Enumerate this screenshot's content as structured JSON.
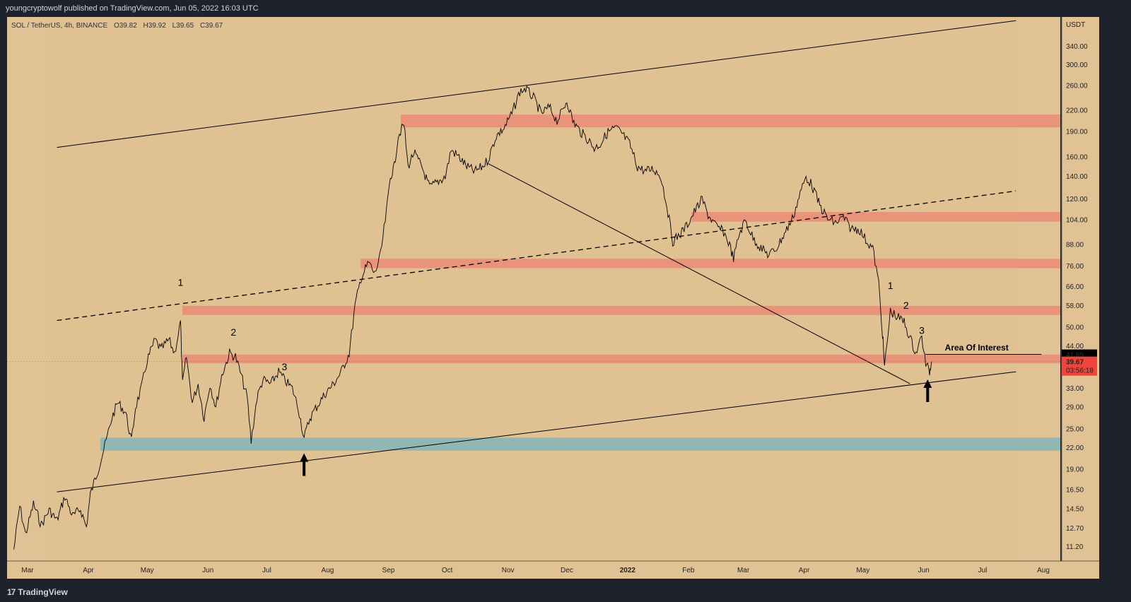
{
  "header": {
    "publisher_text": "youngcryptowolf published on TradingView.com, Jun 05, 2022 16:03 UTC"
  },
  "legend": {
    "symbol": "SOL / TetherUS, 4h, BINANCE",
    "open": "O39.82",
    "high": "H39.92",
    "low": "L39.65",
    "close": "C39.67"
  },
  "footer": {
    "brand": "TradingView",
    "logo_glyph": "17"
  },
  "colors": {
    "chart_bg": "#e0c294",
    "resistance_band": "#e8937a",
    "support_band": "#91b7b4",
    "price_line": "#000000",
    "last_price_bg": "#f0453c",
    "marker_bg": "#000000"
  },
  "chart_data": {
    "type": "line",
    "title": "",
    "xlabel": "",
    "ylabel": "USDT",
    "y_scale": "log",
    "ylim": [
      10.5,
      420
    ],
    "x_tick_labels": [
      "Mar",
      "Apr",
      "May",
      "Jun",
      "Jul",
      "Aug",
      "Sep",
      "Oct",
      "Nov",
      "Dec",
      "2022",
      "Feb",
      "Mar",
      "Apr",
      "May",
      "Jun",
      "Jul",
      "Aug"
    ],
    "x_tick_dates": [
      "2021-03-01",
      "2021-04-01",
      "2021-05-01",
      "2021-06-01",
      "2021-07-01",
      "2021-08-01",
      "2021-09-01",
      "2021-10-01",
      "2021-11-01",
      "2021-12-01",
      "2022-01-01",
      "2022-02-01",
      "2022-03-01",
      "2022-04-01",
      "2022-05-01",
      "2022-06-01",
      "2022-07-01",
      "2022-08-01"
    ],
    "y_ticks": [
      11.2,
      12.7,
      14.5,
      16.5,
      19.0,
      22.0,
      25.0,
      29.0,
      33.0,
      44.0,
      50.0,
      58.0,
      66.0,
      76.0,
      88.0,
      104.0,
      120.0,
      140.0,
      160.0,
      190.0,
      220.0,
      260.0,
      300.0,
      340.0
    ],
    "y_tick_labels": [
      "11.20",
      "12.70",
      "14.50",
      "16.50",
      "19.00",
      "22.00",
      "25.00",
      "29.00",
      "33.00",
      "44.00",
      "50.00",
      "58.00",
      "66.00",
      "76.00",
      "88.00",
      "104.00",
      "120.00",
      "140.00",
      "160.00",
      "190.00",
      "220.00",
      "260.00",
      "300.00",
      "340.00"
    ],
    "series": [
      {
        "points": [
          [
            "2021-02-22",
            11.0
          ],
          [
            "2021-02-25",
            14.8
          ],
          [
            "2021-02-28",
            12.2
          ],
          [
            "2021-03-04",
            15.0
          ],
          [
            "2021-03-08",
            13.0
          ],
          [
            "2021-03-12",
            14.4
          ],
          [
            "2021-03-16",
            13.4
          ],
          [
            "2021-03-20",
            15.8
          ],
          [
            "2021-03-24",
            13.8
          ],
          [
            "2021-03-28",
            14.5
          ],
          [
            "2021-03-31",
            12.8
          ],
          [
            "2021-04-02",
            16.0
          ],
          [
            "2021-04-06",
            19.0
          ],
          [
            "2021-04-10",
            23.0
          ],
          [
            "2021-04-13",
            27.0
          ],
          [
            "2021-04-16",
            30.0
          ],
          [
            "2021-04-20",
            28.0
          ],
          [
            "2021-04-23",
            23.0
          ],
          [
            "2021-04-25",
            29.0
          ],
          [
            "2021-04-28",
            33.0
          ],
          [
            "2021-05-01",
            40.0
          ],
          [
            "2021-05-05",
            46.0
          ],
          [
            "2021-05-08",
            43.0
          ],
          [
            "2021-05-12",
            46.0
          ],
          [
            "2021-05-15",
            42.0
          ],
          [
            "2021-05-18",
            52.0
          ],
          [
            "2021-05-19",
            34.0
          ],
          [
            "2021-05-21",
            41.0
          ],
          [
            "2021-05-24",
            30.0
          ],
          [
            "2021-05-27",
            34.0
          ],
          [
            "2021-05-30",
            27.0
          ],
          [
            "2021-06-02",
            34.0
          ],
          [
            "2021-06-05",
            29.0
          ],
          [
            "2021-06-08",
            36.0
          ],
          [
            "2021-06-12",
            42.0
          ],
          [
            "2021-06-15",
            41.0
          ],
          [
            "2021-06-18",
            36.0
          ],
          [
            "2021-06-21",
            31.0
          ],
          [
            "2021-06-23",
            23.0
          ],
          [
            "2021-06-26",
            31.0
          ],
          [
            "2021-06-29",
            35.0
          ],
          [
            "2021-07-03",
            34.0
          ],
          [
            "2021-07-07",
            37.0
          ],
          [
            "2021-07-10",
            35.0
          ],
          [
            "2021-07-14",
            33.0
          ],
          [
            "2021-07-17",
            29.0
          ],
          [
            "2021-07-20",
            23.5
          ],
          [
            "2021-07-23",
            27.0
          ],
          [
            "2021-07-27",
            29.5
          ],
          [
            "2021-07-31",
            32.0
          ],
          [
            "2021-08-04",
            34.0
          ],
          [
            "2021-08-08",
            37.0
          ],
          [
            "2021-08-12",
            42.0
          ],
          [
            "2021-08-15",
            58.0
          ],
          [
            "2021-08-18",
            70.0
          ],
          [
            "2021-08-22",
            78.0
          ],
          [
            "2021-08-25",
            72.0
          ],
          [
            "2021-08-28",
            82.0
          ],
          [
            "2021-08-31",
            110.0
          ],
          [
            "2021-09-02",
            140.0
          ],
          [
            "2021-09-04",
            150.0
          ],
          [
            "2021-09-06",
            185.0
          ],
          [
            "2021-09-09",
            200.0
          ],
          [
            "2021-09-11",
            150.0
          ],
          [
            "2021-09-14",
            165.0
          ],
          [
            "2021-09-18",
            150.0
          ],
          [
            "2021-09-22",
            130.0
          ],
          [
            "2021-09-26",
            135.0
          ],
          [
            "2021-09-30",
            140.0
          ],
          [
            "2021-10-03",
            168.0
          ],
          [
            "2021-10-07",
            160.0
          ],
          [
            "2021-10-11",
            150.0
          ],
          [
            "2021-10-15",
            145.0
          ],
          [
            "2021-10-19",
            150.0
          ],
          [
            "2021-10-22",
            158.0
          ],
          [
            "2021-10-26",
            185.0
          ],
          [
            "2021-10-30",
            195.0
          ],
          [
            "2021-11-03",
            215.0
          ],
          [
            "2021-11-07",
            250.0
          ],
          [
            "2021-11-10",
            255.0
          ],
          [
            "2021-11-14",
            240.0
          ],
          [
            "2021-11-18",
            215.0
          ],
          [
            "2021-11-22",
            225.0
          ],
          [
            "2021-11-26",
            205.0
          ],
          [
            "2021-11-29",
            220.0
          ],
          [
            "2021-12-01",
            236.0
          ],
          [
            "2021-12-04",
            205.0
          ],
          [
            "2021-12-08",
            190.0
          ],
          [
            "2021-12-12",
            180.0
          ],
          [
            "2021-12-15",
            170.0
          ],
          [
            "2021-12-18",
            175.0
          ],
          [
            "2021-12-22",
            190.0
          ],
          [
            "2021-12-26",
            195.0
          ],
          [
            "2021-12-29",
            188.0
          ],
          [
            "2022-01-02",
            175.0
          ],
          [
            "2022-01-06",
            150.0
          ],
          [
            "2022-01-10",
            145.0
          ],
          [
            "2022-01-14",
            148.0
          ],
          [
            "2022-01-18",
            140.0
          ],
          [
            "2022-01-21",
            115.0
          ],
          [
            "2022-01-24",
            90.0
          ],
          [
            "2022-01-28",
            95.0
          ],
          [
            "2022-01-31",
            100.0
          ],
          [
            "2022-02-04",
            110.0
          ],
          [
            "2022-02-08",
            120.0
          ],
          [
            "2022-02-11",
            108.0
          ],
          [
            "2022-02-15",
            100.0
          ],
          [
            "2022-02-19",
            96.0
          ],
          [
            "2022-02-22",
            88.0
          ],
          [
            "2022-02-24",
            80.0
          ],
          [
            "2022-02-27",
            95.0
          ],
          [
            "2022-03-02",
            104.0
          ],
          [
            "2022-03-06",
            92.0
          ],
          [
            "2022-03-10",
            86.0
          ],
          [
            "2022-03-14",
            82.0
          ],
          [
            "2022-03-18",
            86.0
          ],
          [
            "2022-03-22",
            95.0
          ],
          [
            "2022-03-26",
            105.0
          ],
          [
            "2022-03-30",
            125.0
          ],
          [
            "2022-04-02",
            140.0
          ],
          [
            "2022-04-05",
            132.0
          ],
          [
            "2022-04-09",
            115.0
          ],
          [
            "2022-04-13",
            105.0
          ],
          [
            "2022-04-17",
            102.0
          ],
          [
            "2022-04-21",
            106.0
          ],
          [
            "2022-04-25",
            98.0
          ],
          [
            "2022-04-29",
            98.0
          ],
          [
            "2022-05-03",
            90.0
          ],
          [
            "2022-05-06",
            86.0
          ],
          [
            "2022-05-09",
            68.0
          ],
          [
            "2022-05-11",
            48.0
          ],
          [
            "2022-05-12",
            38.0
          ],
          [
            "2022-05-15",
            56.0
          ],
          [
            "2022-05-18",
            54.0
          ],
          [
            "2022-05-22",
            52.0
          ],
          [
            "2022-05-26",
            45.0
          ],
          [
            "2022-05-28",
            42.0
          ],
          [
            "2022-05-31",
            47.0
          ],
          [
            "2022-06-02",
            39.0
          ],
          [
            "2022-06-04",
            37.0
          ],
          [
            "2022-06-05",
            39.67
          ]
        ]
      }
    ],
    "resistance_zones": [
      [
        196,
        214
      ],
      [
        103,
        110
      ],
      [
        75,
        80
      ],
      [
        54.5,
        58
      ],
      [
        39.2,
        41.6
      ]
    ],
    "support_zones": [
      [
        21.6,
        23.6
      ]
    ],
    "trendlines": [
      {
        "style": "solid",
        "from": [
          "2021-03-16",
          171
        ],
        "to": [
          "2022-07-18",
          406
        ]
      },
      {
        "style": "solid",
        "from": [
          "2021-03-16",
          16.3
        ],
        "to": [
          "2022-07-18",
          37.0
        ]
      },
      {
        "style": "dashed",
        "from": [
          "2021-03-16",
          52.5
        ],
        "to": [
          "2022-07-18",
          127
        ]
      },
      {
        "style": "solid",
        "from": [
          "2021-10-22",
          153
        ],
        "to": [
          "2022-05-25",
          34.1
        ]
      },
      {
        "style": "solid",
        "from": [
          "2022-06-02",
          41.65
        ],
        "to": [
          "2022-07-31",
          41.65
        ]
      }
    ],
    "wave_labels": [
      {
        "text": "1",
        "date": "2021-05-18",
        "y": 66.5
      },
      {
        "text": "2",
        "date": "2021-06-14",
        "y": 47.3
      },
      {
        "text": "3",
        "date": "2021-07-10",
        "y": 37.4
      },
      {
        "text": "1",
        "date": "2022-05-15",
        "y": 65.0
      },
      {
        "text": "2",
        "date": "2022-05-23",
        "y": 56.9
      },
      {
        "text": "3",
        "date": "2022-05-31",
        "y": 47.9
      }
    ],
    "arrows": [
      {
        "date": "2021-07-20",
        "y": 21.2
      },
      {
        "date": "2022-06-03",
        "y": 35.1
      }
    ],
    "annotation": {
      "text": "Area Of Interest",
      "date": "2022-06-28",
      "y": 43.8
    },
    "last_price_markers": [
      {
        "value_text": "41.65",
        "style": "dark"
      },
      {
        "value_text": "39.67",
        "style": "red"
      },
      {
        "value_text": "03:56:18",
        "style": "red"
      }
    ],
    "grid": false,
    "legend_position": "top-left"
  }
}
